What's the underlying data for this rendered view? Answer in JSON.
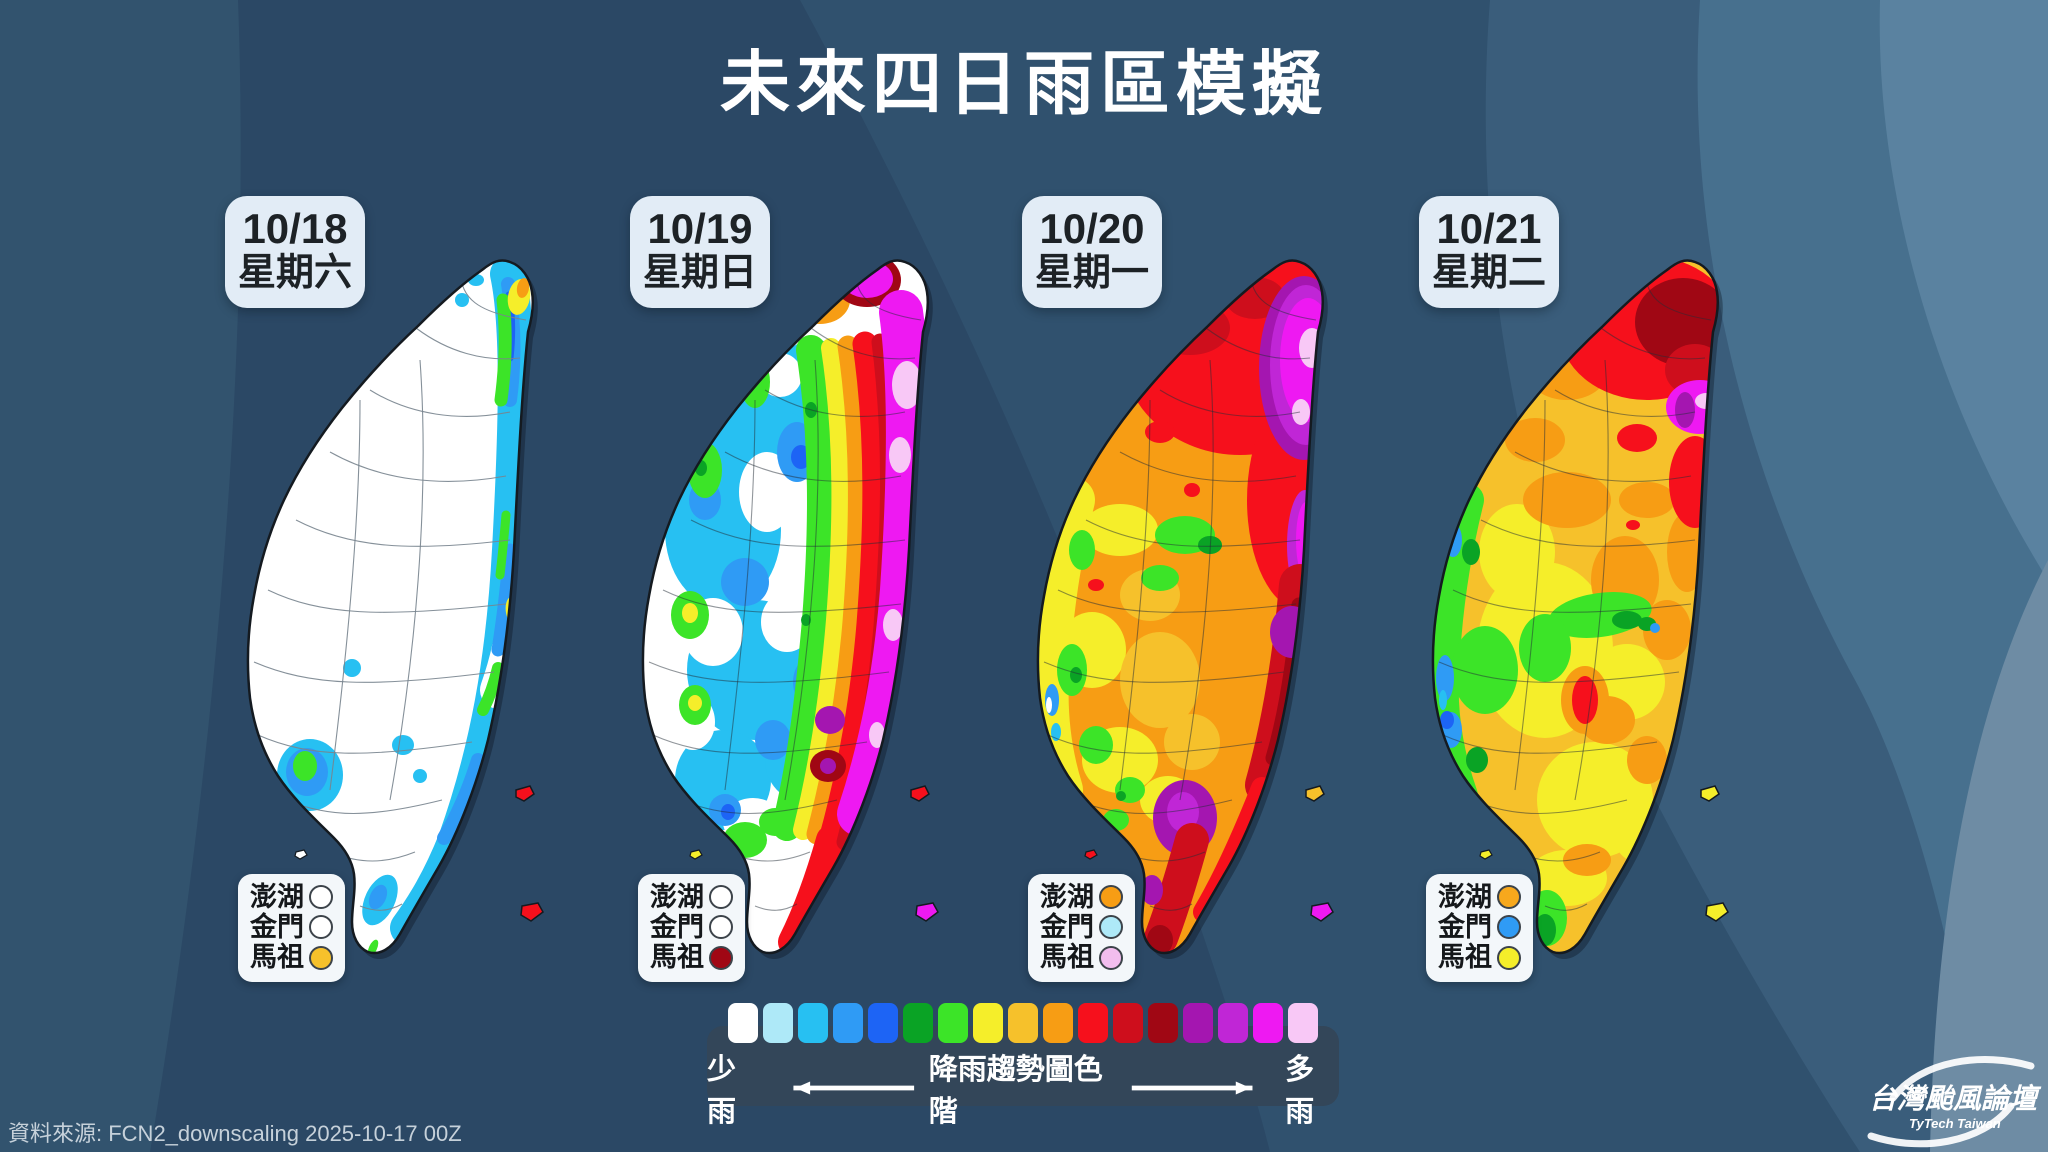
{
  "title": "未來四日雨區模擬",
  "source_note": "資料來源: FCN2_downscaling 2025-10-17 00Z",
  "logo": {
    "name": "台灣颱風論壇",
    "subtitle": "TyTech Taiwan"
  },
  "colorbar": {
    "label_left": "少雨",
    "label_center": "降雨趨勢圖色階",
    "label_right": "多雨",
    "colors": [
      "#ffffff",
      "#aee9f8",
      "#27c0f2",
      "#2f9bf5",
      "#1d64f5",
      "#0aa325",
      "#3ce428",
      "#f5ee2a",
      "#f6c12b",
      "#f79d14",
      "#f6101c",
      "#ce0e1c",
      "#a00714",
      "#a416b0",
      "#c026d6",
      "#ee19f2",
      "#f8c8f6"
    ]
  },
  "panels": [
    {
      "date": "10/18",
      "weekday": "星期六",
      "islands": [
        {
          "label": "澎湖",
          "color": "#ffffff"
        },
        {
          "label": "金門",
          "color": "#ffffff"
        },
        {
          "label": "馬祖",
          "color": "#f6c12b"
        }
      ]
    },
    {
      "date": "10/19",
      "weekday": "星期日",
      "islands": [
        {
          "label": "澎湖",
          "color": "#ffffff"
        },
        {
          "label": "金門",
          "color": "#ffffff"
        },
        {
          "label": "馬祖",
          "color": "#a00714"
        }
      ]
    },
    {
      "date": "10/20",
      "weekday": "星期一",
      "islands": [
        {
          "label": "澎湖",
          "color": "#f79d14"
        },
        {
          "label": "金門",
          "color": "#aee9f8"
        },
        {
          "label": "馬祖",
          "color": "#f2bdee"
        }
      ]
    },
    {
      "date": "10/21",
      "weekday": "星期二",
      "islands": [
        {
          "label": "澎湖",
          "color": "#f7a81c"
        },
        {
          "label": "金門",
          "color": "#2f9bf5"
        },
        {
          "label": "馬祖",
          "color": "#f5ee2a"
        }
      ]
    }
  ]
}
